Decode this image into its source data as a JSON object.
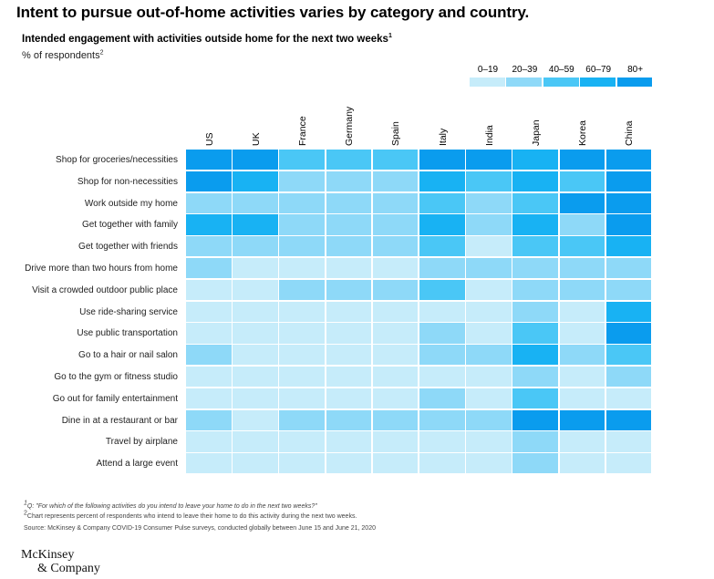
{
  "header": {
    "title": "Intent to pursue out-of-home activities varies by category and country.",
    "subtitle": "Intended engagement with activities outside home for the next two weeks",
    "subtitle_sup": "1",
    "unit": "% of respondents",
    "unit_sup": "2"
  },
  "legend": {
    "bins": [
      {
        "label": "0–19",
        "color": "#c6ecfa"
      },
      {
        "label": "20–39",
        "color": "#8ed9f8"
      },
      {
        "label": "40–59",
        "color": "#4ac7f6"
      },
      {
        "label": "60–79",
        "color": "#18b2f3"
      },
      {
        "label": "80+",
        "color": "#0a9cee"
      }
    ]
  },
  "chart_data": {
    "type": "heatmap",
    "title": "Intended engagement with activities outside home for the next two weeks",
    "value_unit": "% of respondents, binned: 0=0–19, 1=20–39, 2=40–59, 3=60–79, 4=80+",
    "columns": [
      "US",
      "UK",
      "France",
      "Germany",
      "Spain",
      "Italy",
      "India",
      "Japan",
      "Korea",
      "China"
    ],
    "rows": [
      "Shop for groceries/necessities",
      "Shop for non-necessities",
      "Work outside my home",
      "Get together with family",
      "Get together with friends",
      "Drive more than two hours from home",
      "Visit a crowded outdoor public place",
      "Use ride-sharing service",
      "Use public transportation",
      "Go to a hair or nail salon",
      "Go to the gym or fitness studio",
      "Go out for family entertainment",
      "Dine in at a restaurant or bar",
      "Travel by airplane",
      "Attend a large event"
    ],
    "bins": [
      [
        4,
        4,
        2,
        2,
        2,
        4,
        4,
        3,
        4,
        4
      ],
      [
        4,
        3,
        1,
        1,
        1,
        3,
        2,
        3,
        2,
        4
      ],
      [
        1,
        1,
        1,
        1,
        1,
        2,
        1,
        2,
        4,
        4
      ],
      [
        3,
        3,
        1,
        1,
        1,
        3,
        1,
        3,
        1,
        4
      ],
      [
        1,
        1,
        1,
        1,
        1,
        2,
        0,
        2,
        2,
        3
      ],
      [
        1,
        0,
        0,
        0,
        0,
        1,
        1,
        1,
        1,
        1
      ],
      [
        0,
        0,
        1,
        1,
        1,
        2,
        0,
        1,
        1,
        1
      ],
      [
        0,
        0,
        0,
        0,
        0,
        0,
        0,
        1,
        0,
        3
      ],
      [
        0,
        0,
        0,
        0,
        0,
        1,
        0,
        2,
        0,
        4
      ],
      [
        1,
        0,
        0,
        0,
        0,
        1,
        1,
        3,
        1,
        2
      ],
      [
        0,
        0,
        0,
        0,
        0,
        0,
        0,
        1,
        0,
        1
      ],
      [
        0,
        0,
        0,
        0,
        0,
        1,
        0,
        2,
        0,
        0
      ],
      [
        1,
        0,
        1,
        1,
        1,
        1,
        1,
        4,
        4,
        4
      ],
      [
        0,
        0,
        0,
        0,
        0,
        0,
        0,
        1,
        0,
        0
      ],
      [
        0,
        0,
        0,
        0,
        0,
        0,
        0,
        1,
        0,
        0
      ]
    ]
  },
  "footnotes": {
    "fn1_sup": "1",
    "fn1": "Q: \"For which of the following activities do you intend to leave your home to do in the next two weeks?\"",
    "fn2_sup": "2",
    "fn2": "Chart represents percent of respondents who intend to leave their home to do this activity during the next two weeks.",
    "source": "Source: McKinsey & Company COVID-19 Consumer Pulse surveys, conducted globally between June 15 and June 21, 2020"
  },
  "logo": {
    "line1": "McKinsey",
    "line2": "& Company"
  }
}
